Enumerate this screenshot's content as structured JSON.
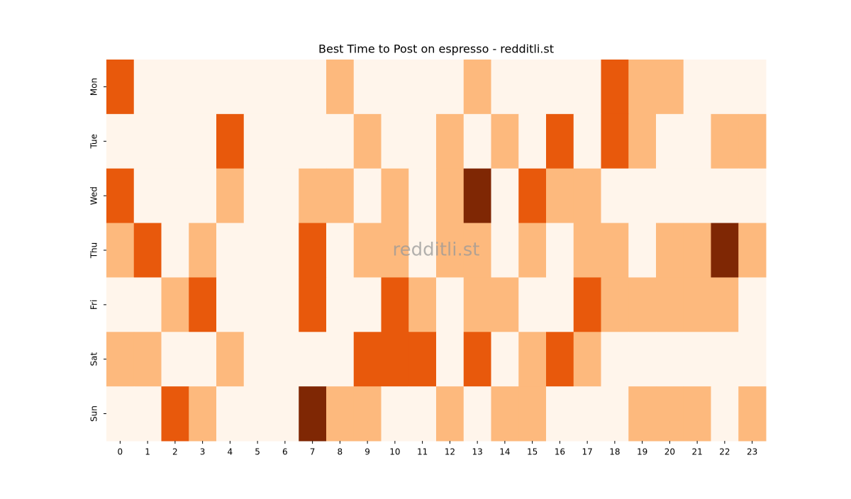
{
  "chart_data": {
    "type": "heatmap",
    "title": "Best Time to Post on espresso - redditli.st",
    "watermark": "redditli.st",
    "x": [
      0,
      1,
      2,
      3,
      4,
      5,
      6,
      7,
      8,
      9,
      10,
      11,
      12,
      13,
      14,
      15,
      16,
      17,
      18,
      19,
      20,
      21,
      22,
      23
    ],
    "categories": [
      "Mon",
      "Tue",
      "Wed",
      "Thu",
      "Fri",
      "Sat",
      "Sun"
    ],
    "values": [
      [
        2,
        0,
        0,
        0,
        0,
        0,
        0,
        0,
        1,
        0,
        0,
        0,
        0,
        1,
        0,
        0,
        0,
        0,
        2,
        1,
        1,
        0,
        0,
        0
      ],
      [
        0,
        0,
        0,
        0,
        2,
        0,
        0,
        0,
        0,
        1,
        0,
        0,
        1,
        0,
        1,
        0,
        2,
        0,
        2,
        1,
        0,
        0,
        1,
        1
      ],
      [
        2,
        0,
        0,
        0,
        1,
        0,
        0,
        1,
        1,
        0,
        1,
        0,
        1,
        3,
        0,
        2,
        1,
        1,
        0,
        0,
        0,
        0,
        0,
        0
      ],
      [
        1,
        2,
        0,
        1,
        0,
        0,
        0,
        2,
        0,
        1,
        1,
        0,
        1,
        1,
        0,
        1,
        0,
        1,
        1,
        0,
        1,
        1,
        3,
        1
      ],
      [
        0,
        0,
        1,
        2,
        0,
        0,
        0,
        2,
        0,
        0,
        2,
        1,
        0,
        1,
        1,
        0,
        0,
        2,
        1,
        1,
        1,
        1,
        1,
        0
      ],
      [
        1,
        1,
        0,
        0,
        1,
        0,
        0,
        0,
        0,
        2,
        2,
        2,
        0,
        2,
        0,
        1,
        2,
        1,
        0,
        0,
        0,
        0,
        0,
        0
      ],
      [
        0,
        0,
        2,
        1,
        0,
        0,
        0,
        3,
        1,
        1,
        0,
        0,
        1,
        0,
        1,
        1,
        0,
        0,
        0,
        1,
        1,
        1,
        0,
        1
      ]
    ],
    "colors": [
      "#fff5eb",
      "#fdb97d",
      "#e8590c",
      "#7f2704"
    ]
  }
}
